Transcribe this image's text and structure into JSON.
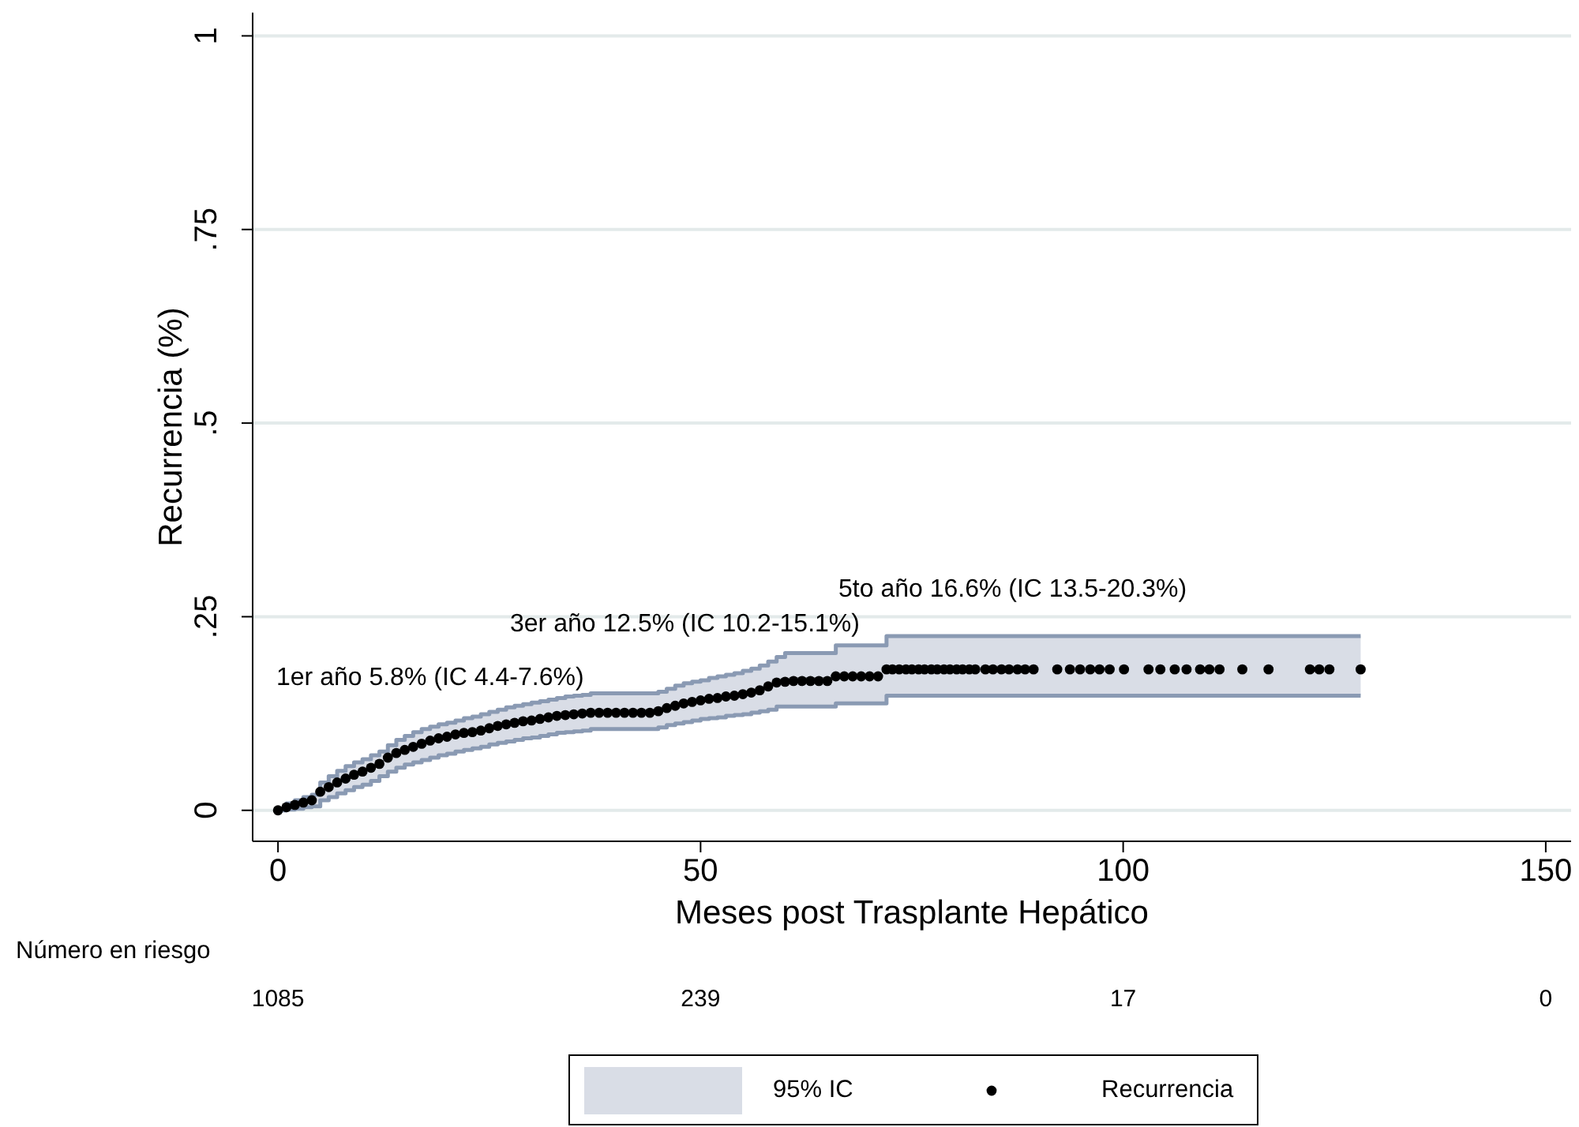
{
  "chart_data": {
    "type": "scatter",
    "xlabel": "Meses post Trasplante Hepático",
    "ylabel": "Recurrencia (%)",
    "xlim": [
      -3,
      153
    ],
    "xticks": [
      0,
      50,
      100,
      150
    ],
    "ylim": [
      -0.04,
      1.03
    ],
    "yticks": [
      0,
      {
        "value": 0.25,
        "label": ".25"
      },
      {
        "value": 0.5,
        "label": ".5"
      },
      {
        "value": 0.75,
        "label": ".75"
      },
      1
    ],
    "grid": "y",
    "legend": "bottom",
    "x": [
      0,
      1,
      2,
      3,
      4,
      5,
      6,
      7,
      8,
      9,
      10,
      11,
      12,
      13,
      14,
      15,
      16,
      17,
      18,
      19,
      20,
      21,
      22,
      23,
      24,
      25,
      26,
      27,
      28,
      29,
      30,
      31,
      32,
      33,
      34,
      35,
      36,
      37,
      38,
      39,
      40,
      41,
      42,
      43,
      44,
      45,
      46,
      47,
      48,
      49,
      50,
      51,
      52,
      53,
      54,
      55,
      56,
      57,
      58,
      59,
      60,
      61,
      62,
      63,
      64,
      65,
      66,
      67,
      68,
      69,
      70,
      71,
      72,
      72.7,
      73.5,
      74.3,
      75,
      75.8,
      76.5,
      77.3,
      78,
      78.8,
      79.5,
      80.3,
      81,
      81.8,
      82.5,
      83.7,
      84.6,
      85.6,
      86.5,
      87.5,
      88.4,
      89.4,
      92.2,
      93.7,
      94.9,
      96.1,
      97.2,
      98.4,
      100.1,
      103,
      104.4,
      106.1,
      107.5,
      109.1,
      110.2,
      111.4,
      114.1,
      117.2,
      122.1,
      123.2,
      124.4,
      128.1
    ],
    "series": [
      {
        "type": "step",
        "color": "#8a9ab3",
        "values": [
          0,
          0.001,
          0.002,
          0.004,
          0.005,
          0.013,
          0.017,
          0.022,
          0.026,
          0.03,
          0.033,
          0.038,
          0.044,
          0.05,
          0.055,
          0.059,
          0.062,
          0.065,
          0.068,
          0.071,
          0.073,
          0.076,
          0.078,
          0.08,
          0.082,
          0.085,
          0.087,
          0.089,
          0.091,
          0.093,
          0.094,
          0.096,
          0.098,
          0.1,
          0.101,
          0.102,
          0.103,
          0.105,
          0.105,
          0.105,
          0.105,
          0.105,
          0.105,
          0.105,
          0.105,
          0.107,
          0.11,
          0.112,
          0.114,
          0.116,
          0.118,
          0.119,
          0.12,
          0.122,
          0.123,
          0.124,
          0.126,
          0.128,
          0.13,
          0.134,
          0.134,
          0.134,
          0.134,
          0.134,
          0.134,
          0.134,
          0.138,
          0.138,
          0.138,
          0.138,
          0.138,
          0.138,
          0.148,
          0.148,
          0.148,
          0.148,
          0.148,
          0.148,
          0.148,
          0.148,
          0.148,
          0.148,
          0.148,
          0.148,
          0.148,
          0.148,
          0.148,
          0.148,
          0.148,
          0.148,
          0.148,
          0.148,
          0.148,
          0.148,
          0.148,
          0.148,
          0.148,
          0.148,
          0.148,
          0.148,
          0.148,
          0.148,
          0.148,
          0.148,
          0.148,
          0.148,
          0.148,
          0.148,
          0.148,
          0.148,
          0.148,
          0.148,
          0.148,
          0.148
        ]
      },
      {
        "type": "step",
        "color": "#8a9ab3",
        "values": [
          0,
          0.009,
          0.013,
          0.017,
          0.02,
          0.036,
          0.044,
          0.051,
          0.057,
          0.062,
          0.066,
          0.071,
          0.076,
          0.084,
          0.091,
          0.096,
          0.101,
          0.105,
          0.108,
          0.111,
          0.113,
          0.116,
          0.119,
          0.121,
          0.124,
          0.127,
          0.13,
          0.133,
          0.135,
          0.137,
          0.139,
          0.141,
          0.143,
          0.145,
          0.147,
          0.148,
          0.149,
          0.151,
          0.151,
          0.151,
          0.151,
          0.151,
          0.151,
          0.151,
          0.151,
          0.153,
          0.157,
          0.161,
          0.164,
          0.166,
          0.168,
          0.171,
          0.173,
          0.175,
          0.177,
          0.18,
          0.183,
          0.187,
          0.192,
          0.198,
          0.203,
          0.203,
          0.203,
          0.203,
          0.203,
          0.203,
          0.213,
          0.213,
          0.213,
          0.213,
          0.213,
          0.213,
          0.225,
          0.225,
          0.225,
          0.225,
          0.225,
          0.225,
          0.225,
          0.225,
          0.225,
          0.225,
          0.225,
          0.225,
          0.225,
          0.225,
          0.225,
          0.225,
          0.225,
          0.225,
          0.225,
          0.225,
          0.225,
          0.225,
          0.225,
          0.225,
          0.225,
          0.225,
          0.225,
          0.225,
          0.225,
          0.225,
          0.225,
          0.225,
          0.225,
          0.225,
          0.225,
          0.225,
          0.225,
          0.225,
          0.225,
          0.225,
          0.225,
          0.225
        ]
      },
      {
        "name": "Recurrencia",
        "color": "#000000",
        "marker": "circle",
        "values": [
          0,
          0.004,
          0.007,
          0.01,
          0.013,
          0.024,
          0.03,
          0.036,
          0.041,
          0.046,
          0.05,
          0.055,
          0.06,
          0.068,
          0.074,
          0.078,
          0.082,
          0.086,
          0.09,
          0.093,
          0.095,
          0.098,
          0.1,
          0.101,
          0.103,
          0.106,
          0.109,
          0.111,
          0.113,
          0.115,
          0.116,
          0.118,
          0.12,
          0.122,
          0.123,
          0.124,
          0.125,
          0.126,
          0.126,
          0.126,
          0.126,
          0.126,
          0.126,
          0.126,
          0.126,
          0.128,
          0.132,
          0.135,
          0.138,
          0.14,
          0.142,
          0.144,
          0.145,
          0.147,
          0.148,
          0.15,
          0.152,
          0.155,
          0.16,
          0.165,
          0.166,
          0.167,
          0.167,
          0.167,
          0.167,
          0.167,
          0.173,
          0.173,
          0.173,
          0.173,
          0.173,
          0.173,
          0.182,
          0.182,
          0.182,
          0.182,
          0.182,
          0.182,
          0.182,
          0.182,
          0.182,
          0.182,
          0.182,
          0.182,
          0.182,
          0.182,
          0.182,
          0.182,
          0.182,
          0.182,
          0.182,
          0.182,
          0.182,
          0.182,
          0.182,
          0.182,
          0.182,
          0.182,
          0.182,
          0.182,
          0.182,
          0.182,
          0.182,
          0.182,
          0.182,
          0.182,
          0.182,
          0.182,
          0.182,
          0.182,
          0.182,
          0.182,
          0.182,
          0.182
        ],
        "lower": [
          0,
          0.001,
          0.002,
          0.004,
          0.005,
          0.013,
          0.017,
          0.022,
          0.026,
          0.03,
          0.033,
          0.038,
          0.044,
          0.05,
          0.055,
          0.059,
          0.062,
          0.065,
          0.068,
          0.071,
          0.073,
          0.076,
          0.078,
          0.08,
          0.082,
          0.085,
          0.087,
          0.089,
          0.091,
          0.093,
          0.094,
          0.096,
          0.098,
          0.1,
          0.101,
          0.102,
          0.103,
          0.105,
          0.105,
          0.105,
          0.105,
          0.105,
          0.105,
          0.105,
          0.105,
          0.107,
          0.11,
          0.112,
          0.114,
          0.116,
          0.118,
          0.119,
          0.12,
          0.122,
          0.123,
          0.124,
          0.126,
          0.128,
          0.13,
          0.134,
          0.134,
          0.134,
          0.134,
          0.134,
          0.134,
          0.134,
          0.138,
          0.138,
          0.138,
          0.138,
          0.138,
          0.138,
          0.148,
          0.148,
          0.148,
          0.148,
          0.148,
          0.148,
          0.148,
          0.148,
          0.148,
          0.148,
          0.148,
          0.148,
          0.148,
          0.148,
          0.148,
          0.148,
          0.148,
          0.148,
          0.148,
          0.148,
          0.148,
          0.148,
          0.148,
          0.148,
          0.148,
          0.148,
          0.148,
          0.148,
          0.148,
          0.148,
          0.148,
          0.148,
          0.148,
          0.148,
          0.148,
          0.148,
          0.148,
          0.148,
          0.148,
          0.148,
          0.148,
          0.148
        ],
        "upper": [
          0,
          0.009,
          0.013,
          0.017,
          0.02,
          0.036,
          0.044,
          0.051,
          0.057,
          0.062,
          0.066,
          0.071,
          0.076,
          0.084,
          0.091,
          0.096,
          0.101,
          0.105,
          0.108,
          0.111,
          0.113,
          0.116,
          0.119,
          0.121,
          0.124,
          0.127,
          0.13,
          0.133,
          0.135,
          0.137,
          0.139,
          0.141,
          0.143,
          0.145,
          0.147,
          0.148,
          0.149,
          0.151,
          0.151,
          0.151,
          0.151,
          0.151,
          0.151,
          0.151,
          0.151,
          0.153,
          0.157,
          0.161,
          0.164,
          0.166,
          0.168,
          0.171,
          0.173,
          0.175,
          0.177,
          0.18,
          0.183,
          0.187,
          0.192,
          0.198,
          0.203,
          0.203,
          0.203,
          0.203,
          0.203,
          0.203,
          0.213,
          0.213,
          0.213,
          0.213,
          0.213,
          0.213,
          0.225,
          0.225,
          0.225,
          0.225,
          0.225,
          0.225,
          0.225,
          0.225,
          0.225,
          0.225,
          0.225,
          0.225,
          0.225,
          0.225,
          0.225,
          0.225,
          0.225,
          0.225,
          0.225,
          0.225,
          0.225,
          0.225,
          0.225,
          0.225,
          0.225,
          0.225,
          0.225,
          0.225,
          0.225,
          0.225,
          0.225,
          0.225,
          0.225,
          0.225,
          0.225,
          0.225,
          0.225,
          0.225,
          0.225,
          0.225,
          0.225,
          0.225
        ]
      }
    ],
    "annotations": [
      "1er año 5.8% (IC 4.4-7.6%)",
      "3er año 12.5% (IC 10.2-15.1%)",
      "5to año 16.6% (IC 13.5-20.3%)",
      "Número en riesgo",
      "1085",
      "239",
      "17",
      "0",
      "95% IC"
    ]
  }
}
